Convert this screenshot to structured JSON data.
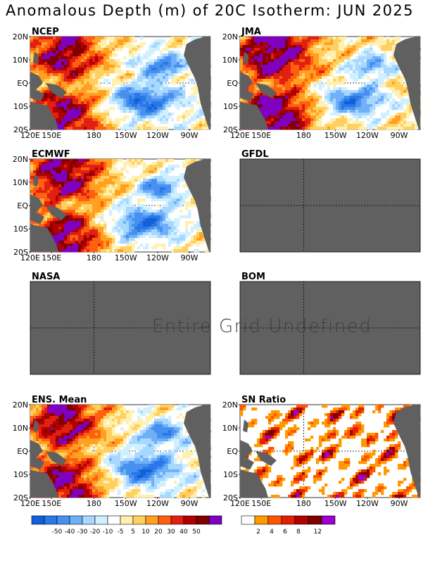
{
  "title": "Anomalous Depth (m) of 20C Isotherm: JUN 2025",
  "lat_labels": [
    "20N",
    "10N",
    "EQ",
    "10S",
    "20S"
  ],
  "lon_labels": [
    "120E",
    "150E",
    "180",
    "150W",
    "120W",
    "90W"
  ],
  "undefined_message": "Entire Grid Undefined",
  "panels": [
    {
      "id": "ncep",
      "title": "NCEP",
      "status": "data",
      "field": "anomaly",
      "seed": 11,
      "bias": 0.15
    },
    {
      "id": "jma",
      "title": "JMA",
      "status": "data",
      "field": "anomaly",
      "seed": 23,
      "bias": 0.55
    },
    {
      "id": "ecmwf",
      "title": "ECMWF",
      "status": "data",
      "field": "anomaly",
      "seed": 37,
      "bias": 0.3
    },
    {
      "id": "gfdl",
      "title": "GFDL",
      "status": "undefined"
    },
    {
      "id": "nasa",
      "title": "NASA",
      "status": "undefined"
    },
    {
      "id": "bom",
      "title": "BOM",
      "status": "undefined"
    },
    {
      "id": "ensmean",
      "title": "ENS. Mean",
      "status": "data",
      "field": "anomaly",
      "seed": 51,
      "bias": 0.2
    },
    {
      "id": "snratio",
      "title": "SN Ratio",
      "status": "data",
      "field": "ratio",
      "seed": 67,
      "bias": 0
    }
  ],
  "legend_anomaly": {
    "colors": [
      "#1060d8",
      "#2878e8",
      "#4890f0",
      "#70b0f8",
      "#a8d8ff",
      "#d0f0ff",
      "#ffffff",
      "#fff0b0",
      "#ffd060",
      "#ffa020",
      "#ff6010",
      "#e02010",
      "#b00000",
      "#800000",
      "#8000c0"
    ],
    "labels": [
      "-50",
      "-40",
      "-30",
      "-20",
      "-10",
      "-5",
      "5",
      "10",
      "20",
      "30",
      "40",
      "50"
    ]
  },
  "legend_ratio": {
    "colors": [
      "#ffffff",
      "#ff9900",
      "#ff5500",
      "#e02000",
      "#b00000",
      "#800000",
      "#9900cc"
    ],
    "labels": [
      "2",
      "4",
      "6",
      "8",
      "12"
    ]
  }
}
